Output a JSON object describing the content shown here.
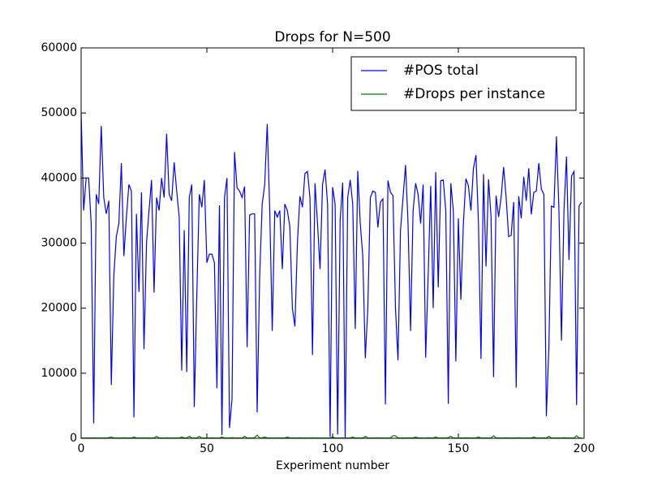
{
  "chart_data": {
    "type": "line",
    "title": "Drops for N=500",
    "x_label": "Experiment number",
    "xlim": [
      0,
      200
    ],
    "ylim": [
      0,
      60000
    ],
    "xticks": [
      0,
      50,
      100,
      150,
      200
    ],
    "yticks": [
      0,
      10000,
      20000,
      30000,
      40000,
      50000,
      60000
    ],
    "legend_position": "upper right",
    "x": [
      0,
      1,
      2,
      3,
      4,
      5,
      6,
      7,
      8,
      9,
      10,
      11,
      12,
      13,
      14,
      15,
      16,
      17,
      18,
      19,
      20,
      21,
      22,
      23,
      24,
      25,
      26,
      27,
      28,
      29,
      30,
      31,
      32,
      33,
      34,
      35,
      36,
      37,
      38,
      39,
      40,
      41,
      42,
      43,
      44,
      45,
      46,
      47,
      48,
      49,
      50,
      51,
      52,
      53,
      54,
      55,
      56,
      57,
      58,
      59,
      60,
      61,
      62,
      63,
      64,
      65,
      66,
      67,
      68,
      69,
      70,
      71,
      72,
      73,
      74,
      75,
      76,
      77,
      78,
      79,
      80,
      81,
      82,
      83,
      84,
      85,
      86,
      87,
      88,
      89,
      90,
      91,
      92,
      93,
      94,
      95,
      96,
      97,
      98,
      99,
      100,
      101,
      102,
      103,
      104,
      105,
      106,
      107,
      108,
      109,
      110,
      111,
      112,
      113,
      114,
      115,
      116,
      117,
      118,
      119,
      120,
      121,
      122,
      123,
      124,
      125,
      126,
      127,
      128,
      129,
      130,
      131,
      132,
      133,
      134,
      135,
      136,
      137,
      138,
      139,
      140,
      141,
      142,
      143,
      144,
      145,
      146,
      147,
      148,
      149,
      150,
      151,
      152,
      153,
      154,
      155,
      156,
      157,
      158,
      159,
      160,
      161,
      162,
      163,
      164,
      165,
      166,
      167,
      168,
      169,
      170,
      171,
      172,
      173,
      174,
      175,
      176,
      177,
      178,
      179,
      180,
      181,
      182,
      183,
      184,
      185,
      186,
      187,
      188,
      189,
      190,
      191,
      192,
      193,
      194,
      195,
      196,
      197,
      198,
      199
    ],
    "series": [
      {
        "name": "#POS total",
        "color": "#0000ff",
        "values": [
          50000,
          35000,
          40000,
          40000,
          33000,
          2300,
          37500,
          36000,
          48000,
          37000,
          34500,
          36500,
          8200,
          25000,
          31000,
          33000,
          42300,
          28000,
          34000,
          39000,
          38000,
          3200,
          34500,
          22500,
          37800,
          13700,
          30000,
          35000,
          39700,
          22400,
          37000,
          35000,
          40000,
          37000,
          46800,
          37500,
          36500,
          42400,
          38000,
          34000,
          10400,
          32000,
          10200,
          37000,
          39000,
          4800,
          22000,
          37500,
          35500,
          39700,
          27000,
          28300,
          28300,
          27000,
          7700,
          35800,
          500,
          37000,
          40000,
          1600,
          6000,
          44000,
          38500,
          38000,
          37000,
          38700,
          14000,
          34300,
          34500,
          34500,
          4000,
          25000,
          36000,
          39000,
          48300,
          35000,
          16500,
          35000,
          34000,
          35000,
          26000,
          36000,
          35000,
          32500,
          20000,
          17200,
          30000,
          37200,
          35500,
          40700,
          41000,
          37000,
          12800,
          39200,
          33000,
          26000,
          39000,
          41300,
          36000,
          200,
          38600,
          36000,
          600,
          33500,
          39300,
          0,
          37000,
          39700,
          36000,
          16800,
          41100,
          33000,
          28000,
          12300,
          20000,
          37000,
          38000,
          37800,
          32400,
          36300,
          36800,
          5200,
          39600,
          37800,
          37300,
          20000,
          12000,
          32000,
          37000,
          42000,
          33000,
          16500,
          35000,
          39200,
          37500,
          33000,
          39000,
          12400,
          25000,
          38800,
          20000,
          40900,
          23200,
          39600,
          39700,
          35000,
          5300,
          39200,
          35000,
          11800,
          33800,
          21300,
          33000,
          39900,
          38800,
          35000,
          41500,
          43500,
          33000,
          12200,
          40600,
          26400,
          39800,
          34000,
          9400,
          37300,
          34000,
          37000,
          41700,
          37000,
          31000,
          31200,
          36300,
          7800,
          37200,
          33800,
          40200,
          36500,
          41500,
          34400,
          37800,
          38000,
          42300,
          38300,
          37500,
          3400,
          14000,
          35700,
          35500,
          46400,
          35000,
          15000,
          35000,
          43300,
          27400,
          40300,
          41000,
          5100,
          35700,
          36300
        ]
      },
      {
        "name": "#Drops per instance",
        "color": "#008000",
        "values": [
          50,
          50,
          50,
          50,
          50,
          80,
          50,
          50,
          50,
          50,
          50,
          100,
          200,
          50,
          50,
          50,
          50,
          80,
          50,
          50,
          50,
          200,
          50,
          50,
          50,
          80,
          50,
          50,
          50,
          50,
          300,
          50,
          50,
          50,
          80,
          50,
          50,
          50,
          50,
          50,
          200,
          50,
          50,
          300,
          50,
          50,
          50,
          300,
          50,
          50,
          50,
          50,
          80,
          50,
          50,
          50,
          200,
          50,
          50,
          50,
          100,
          50,
          50,
          50,
          50,
          300,
          50,
          50,
          50,
          100,
          500,
          50,
          50,
          200,
          50,
          50,
          50,
          50,
          80,
          50,
          50,
          50,
          200,
          50,
          50,
          50,
          50,
          80,
          50,
          50,
          50,
          50,
          80,
          50,
          50,
          50,
          50,
          50,
          50,
          50,
          200,
          50,
          50,
          50,
          80,
          50,
          50,
          50,
          200,
          50,
          50,
          50,
          50,
          300,
          50,
          50,
          50,
          50,
          80,
          50,
          50,
          50,
          50,
          50,
          400,
          400,
          50,
          50,
          50,
          50,
          80,
          50,
          50,
          200,
          50,
          50,
          50,
          50,
          80,
          50,
          50,
          200,
          50,
          50,
          50,
          50,
          100,
          300,
          50,
          50,
          50,
          50,
          50,
          80,
          50,
          50,
          50,
          50,
          200,
          50,
          50,
          50,
          50,
          50,
          400,
          50,
          50,
          50,
          50,
          80,
          50,
          50,
          50,
          50,
          100,
          50,
          50,
          50,
          50,
          50,
          200,
          50,
          50,
          50,
          80,
          50,
          300,
          50,
          50,
          50,
          50,
          50,
          100,
          50,
          50,
          50,
          50,
          400,
          50,
          50
        ]
      }
    ]
  }
}
